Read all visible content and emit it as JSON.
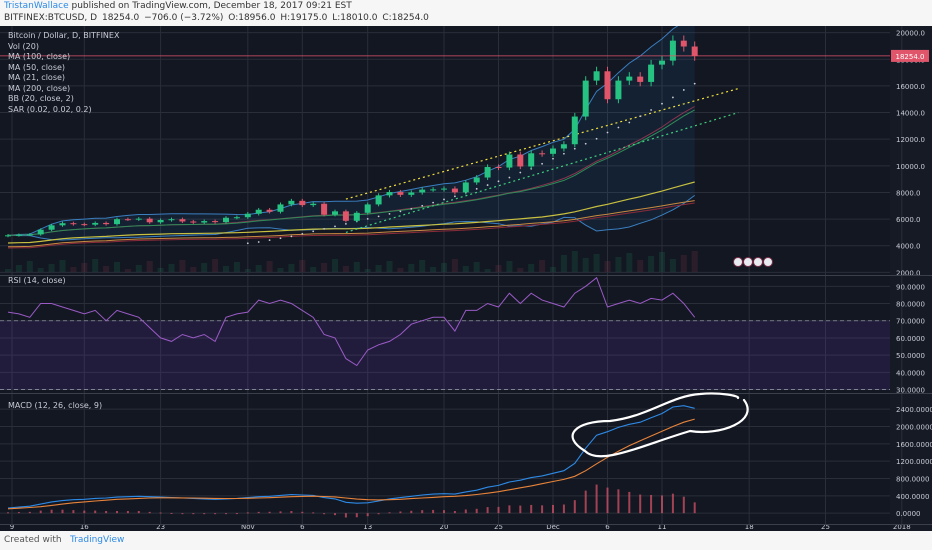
{
  "header": {
    "author": "TristanWallace",
    "published_text": " published on TradingView.com, December 18, 2017 09:21 EST",
    "symbol": "BITFINEX:BTCUSD, D",
    "last": "18254.0",
    "change": "−706.0 (−3.72%)",
    "open": "O:18956.0",
    "high": "H:19175.0",
    "low": "L:18010.0",
    "close": "C:18254.0"
  },
  "footer": {
    "created": "Created with",
    "brand": "TradingView"
  },
  "colors": {
    "bg": "#131722",
    "up": "#26c281",
    "down": "#e0556a",
    "grid": "#2a2e39"
  },
  "chart_data": [
    {
      "type": "candlestick",
      "title": "Bitcoin / Dollar, D, BITFINEX",
      "indicators": [
        "Vol (20)",
        "MA (100, close)",
        "MA (50, close)",
        "MA (21, close)",
        "MA (200, close)",
        "BB (20, close, 2)",
        "SAR (0.02, 0.02, 0.2)"
      ],
      "x_ticks": [
        "9",
        "16",
        "23",
        "Nov",
        "6",
        "13",
        "20",
        "25",
        "Dec",
        "6",
        "11",
        "18",
        "25",
        "2018"
      ],
      "y_ticks": [
        "2000.0",
        "4000.0",
        "6000.0",
        "8000.0",
        "10000.0",
        "12000.0",
        "14000.0",
        "16000.0",
        "18000.0",
        "20000.0"
      ],
      "ylim": [
        1800,
        20500
      ],
      "last_price_label": "18254.0",
      "close": [
        4780,
        4820,
        4850,
        5200,
        5530,
        5690,
        5620,
        5580,
        5710,
        5620,
        5990,
        5980,
        6030,
        5760,
        5930,
        5990,
        5820,
        5740,
        5850,
        5770,
        6100,
        6140,
        6400,
        6700,
        6550,
        7100,
        7370,
        7050,
        7150,
        6330,
        6580,
        5870,
        6470,
        7100,
        7780,
        8030,
        7820,
        8000,
        8210,
        8230,
        8290,
        8010,
        8750,
        9120,
        9910,
        9870,
        10850,
        9950,
        10940,
        10900,
        11300,
        11620,
        13700,
        16400,
        17100,
        15000,
        16400,
        16700,
        16300,
        17600,
        17900,
        19400,
        18960,
        18254
      ],
      "sar": [
        17200,
        16700,
        16100,
        15600,
        15100,
        14600,
        14100,
        13700,
        13300,
        12800,
        12400,
        12000,
        11600,
        11200,
        10800,
        10400,
        10100,
        9700,
        9400,
        9100,
        8800,
        8500,
        8200,
        7950,
        7700,
        7450,
        7200,
        7000,
        6800,
        6600,
        6400,
        6200,
        6000,
        5800,
        5600,
        5400,
        5200,
        5000,
        4850,
        4700,
        4550,
        4450
      ]
    },
    {
      "type": "line",
      "title": "RSI (14, close)",
      "y_ticks": [
        "30.0000",
        "40.0000",
        "50.0000",
        "60.0000",
        "70.0000",
        "80.0000",
        "90.0000"
      ],
      "ylim": [
        28,
        96
      ],
      "bands": [
        30,
        70
      ],
      "values": [
        75,
        74,
        72,
        80,
        80,
        78,
        76,
        74,
        76,
        70,
        76,
        74,
        72,
        66,
        60,
        58,
        62,
        60,
        62,
        58,
        72,
        74,
        75,
        82,
        80,
        82,
        80,
        76,
        72,
        62,
        60,
        48,
        44,
        53,
        56,
        58,
        62,
        68,
        70,
        72,
        72,
        64,
        76,
        76,
        80,
        78,
        86,
        80,
        86,
        82,
        80,
        78,
        86,
        90,
        95,
        78,
        80,
        82,
        80,
        83,
        82,
        86,
        80,
        72
      ]
    },
    {
      "type": "line",
      "title": "MACD (12, 26, close, 9)",
      "y_ticks": [
        "0.0000",
        "400.0000",
        "800.0000",
        "1200.0000",
        "1600.0000",
        "2000.0000",
        "2400.0000"
      ],
      "ylim": [
        -250,
        2750
      ],
      "series": [
        {
          "values": [
            120,
            140,
            160,
            210,
            260,
            290,
            310,
            320,
            340,
            350,
            370,
            380,
            390,
            380,
            370,
            360,
            350,
            340,
            330,
            320,
            330,
            340,
            360,
            380,
            390,
            410,
            430,
            420,
            410,
            360,
            330,
            250,
            230,
            240,
            280,
            330,
            360,
            390,
            420,
            440,
            450,
            440,
            490,
            530,
            600,
            640,
            720,
            760,
            820,
            860,
            920,
            980,
            1150,
            1500,
            1800,
            1880,
            1980,
            2050,
            2100,
            2200,
            2300,
            2450,
            2480,
            2420
          ]
        },
        {
          "values": [
            100,
            115,
            130,
            150,
            180,
            210,
            240,
            260,
            280,
            300,
            320,
            330,
            340,
            350,
            355,
            355,
            352,
            350,
            345,
            340,
            338,
            338,
            342,
            350,
            358,
            368,
            380,
            388,
            392,
            385,
            375,
            350,
            325,
            310,
            305,
            310,
            320,
            335,
            350,
            365,
            380,
            390,
            405,
            430,
            460,
            495,
            540,
            585,
            630,
            680,
            730,
            780,
            850,
            980,
            1140,
            1290,
            1430,
            1560,
            1670,
            1780,
            1890,
            2000,
            2100,
            2170
          ]
        }
      ]
    }
  ]
}
